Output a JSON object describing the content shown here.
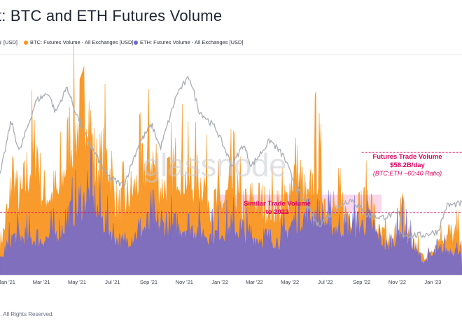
{
  "title": "t: BTC and ETH Futures Volume",
  "legend": [
    {
      "label": "[USD]",
      "color": "#9aa0a6"
    },
    {
      "label": "BTC: Futures Volume - All Exchanges [USD]",
      "color": "#f7931a"
    },
    {
      "label": "ETH: Futures Volume - All Exchanges [USD]",
      "color": "#6b67d6"
    }
  ],
  "watermark": "glassnode",
  "footer": "t. All Rights Reserved.",
  "colors": {
    "btc": "#f7931a",
    "eth": "#6b67d6",
    "price": "#a8acb3",
    "annotation": "#e0005f",
    "highlight": "#f4a6d0"
  },
  "chart_data": {
    "type": "area",
    "title": "BTC and ETH Futures Volume",
    "x_ticks": [
      "Jan '21",
      "Mar '21",
      "May '21",
      "Jul '21",
      "Sep '21",
      "Nov '21",
      "Jan '22",
      "Mar '22",
      "May '22",
      "Jul '22",
      "Sep '22",
      "Nov '22",
      "Jan '23"
    ],
    "x_range": [
      "2020-12-20",
      "2023-02-20"
    ],
    "y_range": [
      0,
      100
    ],
    "series": [
      {
        "name": "BTC: Futures Volume - All Exchanges [USD]",
        "kind": "volume",
        "points": [
          [
            "2020-12-20",
            14
          ],
          [
            "2021-01-05",
            30
          ],
          [
            "2021-01-11",
            52
          ],
          [
            "2021-01-20",
            33
          ],
          [
            "2021-02-05",
            45
          ],
          [
            "2021-02-22",
            60
          ],
          [
            "2021-03-01",
            38
          ],
          [
            "2021-03-15",
            37
          ],
          [
            "2021-04-01",
            38
          ],
          [
            "2021-04-18",
            60
          ],
          [
            "2021-05-12",
            74
          ],
          [
            "2021-05-20",
            82
          ],
          [
            "2021-06-01",
            48
          ],
          [
            "2021-06-22",
            55
          ],
          [
            "2021-07-10",
            30
          ],
          [
            "2021-07-25",
            33
          ],
          [
            "2021-08-10",
            42
          ],
          [
            "2021-09-07",
            55
          ],
          [
            "2021-09-20",
            40
          ],
          [
            "2021-10-10",
            43
          ],
          [
            "2021-10-20",
            52
          ],
          [
            "2021-11-10",
            42
          ],
          [
            "2021-12-04",
            44
          ],
          [
            "2021-12-20",
            30
          ],
          [
            "2022-01-08",
            34
          ],
          [
            "2022-01-22",
            42
          ],
          [
            "2022-02-10",
            30
          ],
          [
            "2022-03-01",
            34
          ],
          [
            "2022-03-25",
            31
          ],
          [
            "2022-04-20",
            30
          ],
          [
            "2022-05-10",
            50
          ],
          [
            "2022-06-01",
            30
          ],
          [
            "2022-06-14",
            52
          ],
          [
            "2022-07-05",
            30
          ],
          [
            "2022-07-25",
            30
          ],
          [
            "2022-08-20",
            28
          ],
          [
            "2022-09-13",
            33
          ],
          [
            "2022-10-01",
            18
          ],
          [
            "2022-10-25",
            14
          ],
          [
            "2022-11-09",
            30
          ],
          [
            "2022-11-25",
            14
          ],
          [
            "2022-12-20",
            8
          ],
          [
            "2023-01-14",
            18
          ],
          [
            "2023-02-20",
            18
          ]
        ]
      },
      {
        "name": "ETH: Futures Volume - All Exchanges [USD]",
        "kind": "volume",
        "points": [
          [
            "2020-12-20",
            6
          ],
          [
            "2021-01-11",
            18
          ],
          [
            "2021-02-01",
            17
          ],
          [
            "2021-03-01",
            16
          ],
          [
            "2021-04-01",
            20
          ],
          [
            "2021-05-12",
            34
          ],
          [
            "2021-05-20",
            38
          ],
          [
            "2021-06-15",
            25
          ],
          [
            "2021-07-15",
            14
          ],
          [
            "2021-08-15",
            20
          ],
          [
            "2021-09-07",
            24
          ],
          [
            "2021-10-15",
            22
          ],
          [
            "2021-11-15",
            22
          ],
          [
            "2021-12-15",
            18
          ],
          [
            "2022-01-22",
            22
          ],
          [
            "2022-03-01",
            17
          ],
          [
            "2022-04-15",
            16
          ],
          [
            "2022-05-10",
            26
          ],
          [
            "2022-06-14",
            28
          ],
          [
            "2022-07-15",
            22
          ],
          [
            "2022-08-15",
            22
          ],
          [
            "2022-09-13",
            24
          ],
          [
            "2022-10-15",
            12
          ],
          [
            "2022-11-09",
            22
          ],
          [
            "2022-12-15",
            6
          ],
          [
            "2023-01-14",
            11
          ],
          [
            "2023-02-20",
            12
          ]
        ]
      },
      {
        "name": "[USD]",
        "kind": "price",
        "points": [
          [
            "2020-12-20",
            50
          ],
          [
            "2021-01-08",
            78
          ],
          [
            "2021-01-22",
            62
          ],
          [
            "2021-02-20",
            88
          ],
          [
            "2021-03-13",
            92
          ],
          [
            "2021-03-25",
            82
          ],
          [
            "2021-04-14",
            95
          ],
          [
            "2021-04-25",
            85
          ],
          [
            "2021-05-19",
            68
          ],
          [
            "2021-06-22",
            50
          ],
          [
            "2021-07-20",
            45
          ],
          [
            "2021-08-15",
            66
          ],
          [
            "2021-09-06",
            76
          ],
          [
            "2021-09-21",
            64
          ],
          [
            "2021-10-20",
            92
          ],
          [
            "2021-11-10",
            100
          ],
          [
            "2021-11-26",
            83
          ],
          [
            "2021-12-25",
            74
          ],
          [
            "2022-01-22",
            55
          ],
          [
            "2022-02-10",
            66
          ],
          [
            "2022-02-24",
            55
          ],
          [
            "2022-03-28",
            68
          ],
          [
            "2022-04-20",
            60
          ],
          [
            "2022-05-12",
            44
          ],
          [
            "2022-06-18",
            25
          ],
          [
            "2022-07-01",
            28
          ],
          [
            "2022-07-29",
            36
          ],
          [
            "2022-08-15",
            38
          ],
          [
            "2022-09-10",
            30
          ],
          [
            "2022-10-05",
            29
          ],
          [
            "2022-11-05",
            31
          ],
          [
            "2022-11-10",
            20
          ],
          [
            "2022-12-15",
            20
          ],
          [
            "2023-01-10",
            22
          ],
          [
            "2023-01-25",
            35
          ],
          [
            "2023-02-20",
            36
          ]
        ]
      }
    ],
    "reference_lines": [
      {
        "label": "Similar Trade Volume to 2022",
        "level": 28,
        "from": "2020-12-20",
        "to": "2023-02-20"
      },
      {
        "label": "Futures Trade Volume $58.2B/day",
        "level": 55,
        "from": "2022-09-01",
        "to": "2023-02-20"
      }
    ],
    "highlight_band": {
      "from": "2021-12-28",
      "to": "2022-10-05",
      "low": 28,
      "high": 36
    },
    "annotations": [
      {
        "lines": [
          "Similar Trade Volume",
          "to 2022"
        ]
      },
      {
        "lines": [
          "Futures Trade Volume",
          "$58.2B/day",
          "(BTC:ETH ~60:40 Ratio)"
        ]
      }
    ]
  }
}
